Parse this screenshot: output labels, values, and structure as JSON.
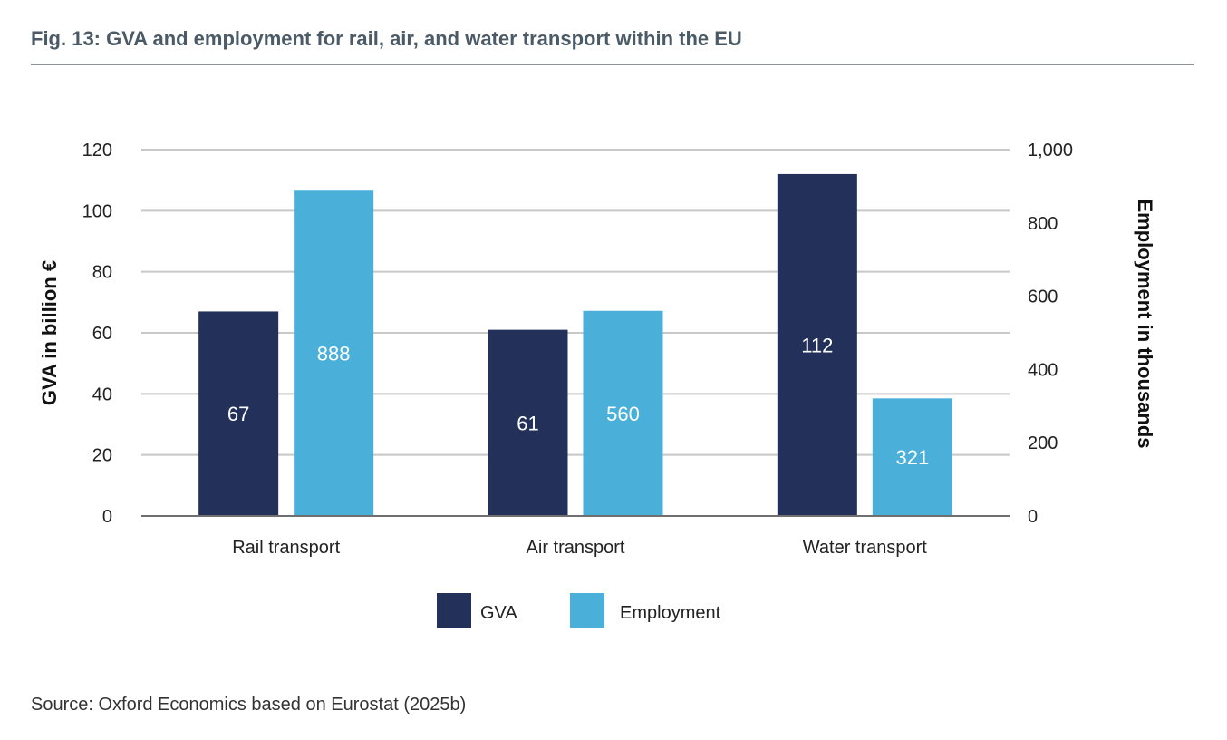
{
  "figure": {
    "title": "Fig. 13: GVA and employment for rail, air, and water transport within the EU",
    "source": "Source: Oxford Economics based on Eurostat (2025b)"
  },
  "chart_data": {
    "type": "bar",
    "categories": [
      "Rail transport",
      "Air transport",
      "Water transport"
    ],
    "series": [
      {
        "name": "GVA",
        "axis": "left",
        "color": "#22305a",
        "values": [
          67,
          61,
          112
        ],
        "labels": [
          "67",
          "61",
          "112"
        ]
      },
      {
        "name": "Employment",
        "axis": "right",
        "color": "#4aafd9",
        "values": [
          888,
          560,
          321
        ],
        "labels": [
          "888",
          "560",
          "321"
        ]
      }
    ],
    "ylabel": "GVA in billion €",
    "ylabel_right": "Employment in thousands",
    "ylim": [
      0,
      120
    ],
    "ylim_right": [
      0,
      1000
    ],
    "yticks": [
      "0",
      "20",
      "40",
      "60",
      "80",
      "100",
      "120"
    ],
    "yticks_right": [
      "0",
      "200",
      "400",
      "600",
      "800",
      "1,000"
    ],
    "grid": true,
    "legend": "bottom-center"
  }
}
